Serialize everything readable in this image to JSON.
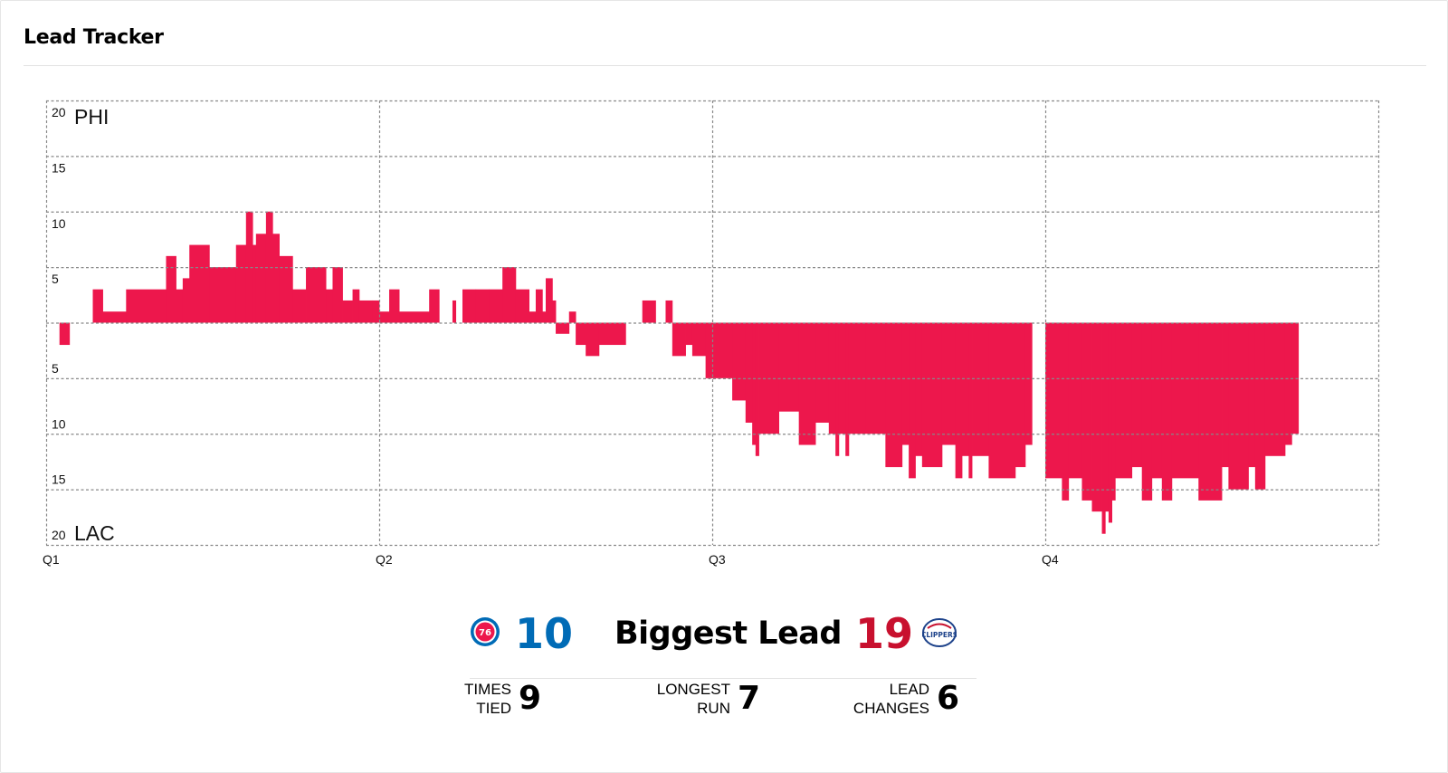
{
  "header": {
    "title": "Lead Tracker"
  },
  "chart_data": {
    "type": "bar",
    "title": "Lead Tracker",
    "x_unit": "quarter",
    "x_ticks": [
      "Q1",
      "Q2",
      "Q3",
      "Q4"
    ],
    "xlim": [
      0,
      4
    ],
    "ylim": [
      -20,
      20
    ],
    "y_ticks": [
      20,
      15,
      10,
      5,
      0,
      5,
      10,
      15,
      20
    ],
    "top_label": "PHI",
    "bottom_label": "LAC",
    "bar_color": "#ed174c",
    "grid": true,
    "series": [
      {
        "values": [
          [
            0.04,
            0.07,
            -2
          ],
          [
            0.14,
            0.17,
            3
          ],
          [
            0.17,
            0.24,
            1
          ],
          [
            0.24,
            0.36,
            3
          ],
          [
            0.36,
            0.39,
            6
          ],
          [
            0.39,
            0.41,
            3
          ],
          [
            0.41,
            0.43,
            4
          ],
          [
            0.43,
            0.49,
            7
          ],
          [
            0.49,
            0.57,
            5
          ],
          [
            0.57,
            0.6,
            7
          ],
          [
            0.6,
            0.62,
            10
          ],
          [
            0.62,
            0.63,
            7
          ],
          [
            0.63,
            0.66,
            8
          ],
          [
            0.66,
            0.68,
            10
          ],
          [
            0.68,
            0.7,
            8
          ],
          [
            0.7,
            0.74,
            6
          ],
          [
            0.74,
            0.78,
            3
          ],
          [
            0.78,
            0.84,
            5
          ],
          [
            0.84,
            0.86,
            3
          ],
          [
            0.86,
            0.89,
            5
          ],
          [
            0.89,
            0.92,
            2
          ],
          [
            0.92,
            0.94,
            3
          ],
          [
            0.94,
            0.98,
            2
          ],
          [
            0.98,
            1.0,
            2
          ],
          [
            1.0,
            1.03,
            1
          ],
          [
            1.03,
            1.06,
            3
          ],
          [
            1.06,
            1.15,
            1
          ],
          [
            1.15,
            1.18,
            3
          ],
          [
            1.22,
            1.23,
            2
          ],
          [
            1.25,
            1.29,
            3
          ],
          [
            1.29,
            1.33,
            3
          ],
          [
            1.33,
            1.37,
            3
          ],
          [
            1.37,
            1.41,
            5
          ],
          [
            1.41,
            1.45,
            3
          ],
          [
            1.45,
            1.47,
            1
          ],
          [
            1.47,
            1.49,
            3
          ],
          [
            1.49,
            1.5,
            1
          ],
          [
            1.5,
            1.52,
            4
          ],
          [
            1.52,
            1.53,
            2
          ],
          [
            1.53,
            1.57,
            -1
          ],
          [
            1.57,
            1.59,
            1
          ],
          [
            1.59,
            1.62,
            -2
          ],
          [
            1.62,
            1.66,
            -3
          ],
          [
            1.66,
            1.74,
            -2
          ],
          [
            1.79,
            1.83,
            2
          ],
          [
            1.86,
            1.88,
            2
          ],
          [
            1.88,
            1.92,
            -3
          ],
          [
            1.92,
            1.94,
            -2
          ],
          [
            1.94,
            1.98,
            -3
          ],
          [
            1.98,
            2.06,
            -5
          ],
          [
            2.06,
            2.1,
            -7
          ],
          [
            2.1,
            2.12,
            -9
          ],
          [
            2.12,
            2.13,
            -11
          ],
          [
            2.13,
            2.14,
            -12
          ],
          [
            2.14,
            2.2,
            -10
          ],
          [
            2.2,
            2.26,
            -8
          ],
          [
            2.26,
            2.31,
            -11
          ],
          [
            2.31,
            2.35,
            -9
          ],
          [
            2.35,
            2.37,
            -10
          ],
          [
            2.37,
            2.38,
            -12
          ],
          [
            2.38,
            2.4,
            -10
          ],
          [
            2.4,
            2.41,
            -12
          ],
          [
            2.41,
            2.46,
            -10
          ],
          [
            2.46,
            2.52,
            -10
          ],
          [
            2.52,
            2.57,
            -13
          ],
          [
            2.57,
            2.59,
            -11
          ],
          [
            2.59,
            2.61,
            -14
          ],
          [
            2.61,
            2.63,
            -12
          ],
          [
            2.63,
            2.69,
            -13
          ],
          [
            2.69,
            2.73,
            -11
          ],
          [
            2.73,
            2.75,
            -14
          ],
          [
            2.75,
            2.77,
            -12
          ],
          [
            2.77,
            2.78,
            -14
          ],
          [
            2.78,
            2.83,
            -12
          ],
          [
            2.83,
            2.91,
            -14
          ],
          [
            2.91,
            2.94,
            -13
          ],
          [
            2.94,
            2.96,
            -11
          ],
          [
            3.0,
            3.05,
            -14
          ],
          [
            3.05,
            3.07,
            -16
          ],
          [
            3.07,
            3.11,
            -14
          ],
          [
            3.11,
            3.14,
            -16
          ],
          [
            3.14,
            3.17,
            -17
          ],
          [
            3.17,
            3.18,
            -19
          ],
          [
            3.18,
            3.19,
            -17
          ],
          [
            3.19,
            3.2,
            -18
          ],
          [
            3.2,
            3.21,
            -16
          ],
          [
            3.21,
            3.26,
            -14
          ],
          [
            3.26,
            3.29,
            -13
          ],
          [
            3.29,
            3.32,
            -16
          ],
          [
            3.32,
            3.35,
            -14
          ],
          [
            3.35,
            3.38,
            -16
          ],
          [
            3.38,
            3.46,
            -14
          ],
          [
            3.46,
            3.53,
            -16
          ],
          [
            3.53,
            3.55,
            -13
          ],
          [
            3.55,
            3.61,
            -15
          ],
          [
            3.61,
            3.63,
            -13
          ],
          [
            3.63,
            3.66,
            -15
          ],
          [
            3.66,
            3.72,
            -12
          ],
          [
            3.72,
            3.74,
            -11
          ],
          [
            3.74,
            3.76,
            -10
          ]
        ]
      }
    ]
  },
  "stats": {
    "phi_logo": "76ers-logo",
    "lac_logo": "clippers-logo",
    "lac_logo_text": "CLIPPERS",
    "phi_biggest_lead": "10",
    "lac_biggest_lead": "19",
    "biggest_lead_label": "Biggest Lead",
    "times_tied_label_1": "TIMES",
    "times_tied_label_2": "TIED",
    "times_tied": "9",
    "longest_run_label_1": "LONGEST",
    "longest_run_label_2": "RUN",
    "longest_run": "7",
    "lead_changes_label_1": "LEAD",
    "lead_changes_label_2": "CHANGES",
    "lead_changes": "6",
    "phi_color": "#006bb6",
    "lac_color": "#c8102e"
  }
}
